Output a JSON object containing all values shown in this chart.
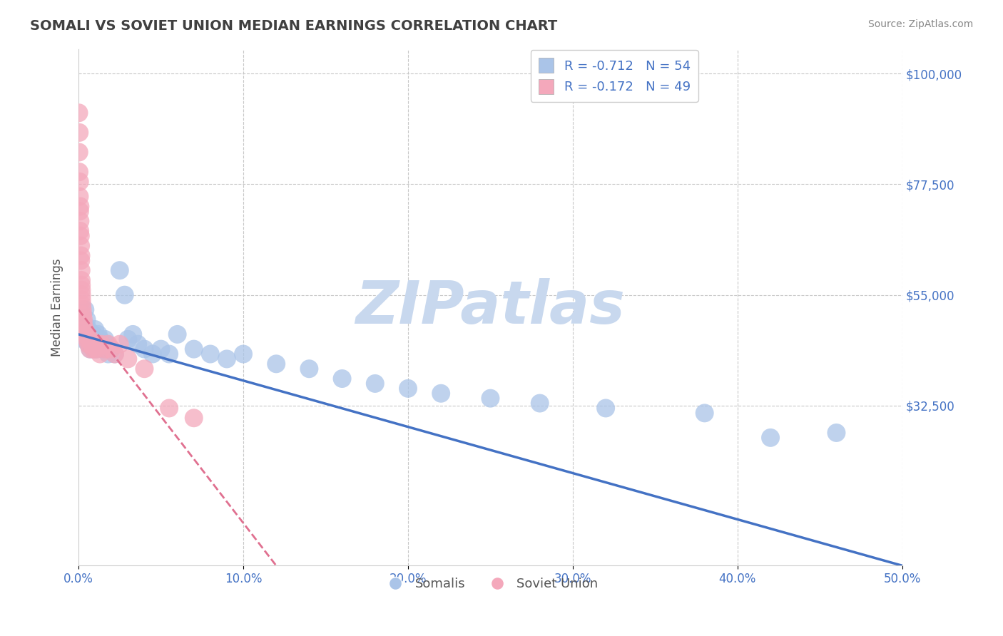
{
  "title": "SOMALI VS SOVIET UNION MEDIAN EARNINGS CORRELATION CHART",
  "source_text": "Source: ZipAtlas.com",
  "ylabel": "Median Earnings",
  "xlim": [
    0.0,
    0.5
  ],
  "ylim": [
    0,
    105000
  ],
  "xticks": [
    0.0,
    0.1,
    0.2,
    0.3,
    0.4,
    0.5
  ],
  "xtick_labels": [
    "0.0%",
    "10.0%",
    "20.0%",
    "30.0%",
    "40.0%",
    "50.0%"
  ],
  "yticks": [
    0,
    32500,
    55000,
    77500,
    100000
  ],
  "ytick_labels": [
    "",
    "$32,500",
    "$55,000",
    "$77,500",
    "$100,000"
  ],
  "somali_R": -0.712,
  "somali_N": 54,
  "soviet_R": -0.172,
  "soviet_N": 49,
  "somali_color": "#aac4e8",
  "soviet_color": "#f4a8bb",
  "somali_line_color": "#4472c4",
  "soviet_line_color": "#e07090",
  "watermark": "ZIPatlas",
  "watermark_color": "#c8d8ee",
  "background_color": "#ffffff",
  "grid_color": "#c8c8c8",
  "title_color": "#404040",
  "axis_label_color": "#555555",
  "tick_label_color": "#4472c4",
  "legend_R_color": "#4472c4",
  "somali_x": [
    0.001,
    0.002,
    0.003,
    0.003,
    0.004,
    0.004,
    0.005,
    0.005,
    0.006,
    0.006,
    0.007,
    0.007,
    0.008,
    0.008,
    0.009,
    0.009,
    0.01,
    0.01,
    0.011,
    0.012,
    0.013,
    0.014,
    0.015,
    0.016,
    0.017,
    0.018,
    0.02,
    0.022,
    0.025,
    0.028,
    0.03,
    0.033,
    0.036,
    0.04,
    0.045,
    0.05,
    0.055,
    0.06,
    0.07,
    0.08,
    0.09,
    0.1,
    0.12,
    0.14,
    0.16,
    0.18,
    0.2,
    0.22,
    0.25,
    0.28,
    0.32,
    0.38,
    0.42,
    0.46
  ],
  "somali_y": [
    47000,
    50000,
    48000,
    46000,
    52000,
    49000,
    50000,
    46000,
    48000,
    45000,
    47000,
    44000,
    46000,
    45000,
    47000,
    44000,
    48000,
    45000,
    44000,
    47000,
    46000,
    45000,
    44000,
    46000,
    45000,
    43000,
    44000,
    43000,
    60000,
    55000,
    46000,
    47000,
    45000,
    44000,
    43000,
    44000,
    43000,
    47000,
    44000,
    43000,
    42000,
    43000,
    41000,
    40000,
    38000,
    37000,
    36000,
    35000,
    34000,
    33000,
    32000,
    31000,
    26000,
    27000
  ],
  "soviet_x": [
    0.0002,
    0.0003,
    0.0004,
    0.0005,
    0.0006,
    0.0007,
    0.0008,
    0.0009,
    0.001,
    0.001,
    0.0012,
    0.0013,
    0.0014,
    0.0015,
    0.0016,
    0.0017,
    0.0018,
    0.0019,
    0.002,
    0.002,
    0.0022,
    0.0024,
    0.0026,
    0.003,
    0.003,
    0.004,
    0.004,
    0.005,
    0.005,
    0.006,
    0.006,
    0.007,
    0.007,
    0.008,
    0.009,
    0.01,
    0.011,
    0.012,
    0.013,
    0.014,
    0.016,
    0.018,
    0.02,
    0.022,
    0.025,
    0.03,
    0.04,
    0.055,
    0.07
  ],
  "soviet_y": [
    92000,
    84000,
    80000,
    88000,
    75000,
    78000,
    72000,
    68000,
    73000,
    70000,
    67000,
    65000,
    62000,
    63000,
    60000,
    58000,
    57000,
    56000,
    54000,
    55000,
    53000,
    52000,
    51000,
    50000,
    49000,
    48000,
    47000,
    46000,
    47000,
    46000,
    45000,
    44000,
    46000,
    45000,
    44000,
    45000,
    44000,
    45000,
    43000,
    45000,
    44000,
    45000,
    44000,
    43000,
    45000,
    42000,
    40000,
    32000,
    30000
  ]
}
